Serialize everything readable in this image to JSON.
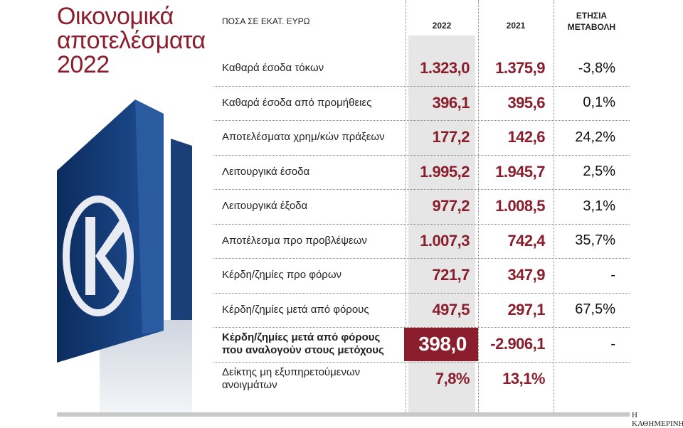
{
  "header": {
    "title_lines": [
      "Οικονομικά",
      "αποτελέσματα",
      "2022"
    ]
  },
  "table": {
    "columns": [
      "ΠΟΣΑ ΣΕ ΕΚΑΤ. ΕΥΡΩ",
      "2022",
      "2021",
      "ΕΤΗΣΙΑ ΜΕΤΑΒΟΛΗ"
    ],
    "rows": [
      [
        "Καθαρά έσοδα τόκων",
        "1.323,0",
        "1.375,9",
        "-3,8%"
      ],
      [
        "Καθαρά έσοδα από προμήθειες",
        "396,1",
        "395,6",
        "0,1%"
      ],
      [
        "Αποτελέσματα χρημ/κών πράξεων",
        "177,2",
        "142,6",
        "24,2%"
      ],
      [
        "Λειτουργικά έσοδα",
        "1.995,2",
        "1.945,7",
        "2,5%"
      ],
      [
        "Λειτουργικά έξοδα",
        "977,2",
        "1.008,5",
        "3,1%"
      ],
      [
        "Αποτέλεσμα προ προβλέψεων",
        "1.007,3",
        "742,4",
        "35,7%"
      ],
      [
        "Κέρδη/ζημίες προ φόρων",
        "721,7",
        "347,9",
        "-"
      ],
      [
        "Κέρδη/ζημίες μετά από φόρους",
        "497,5",
        "297,1",
        "67,5%"
      ],
      [
        "Κέρδη/ζημίες μετά από φόρους που αναλογούν στους μετόχους",
        "398,0",
        "-2.906,1",
        "-"
      ],
      [
        "Δείκτης μη εξυπηρετούμενων ανοιγμάτων",
        "7,8%",
        "13,1%",
        ""
      ]
    ],
    "highlight_row": 8
  },
  "footer": {
    "source": "Η ΚΑΘΗΜΕΡΙΝΗ"
  }
}
